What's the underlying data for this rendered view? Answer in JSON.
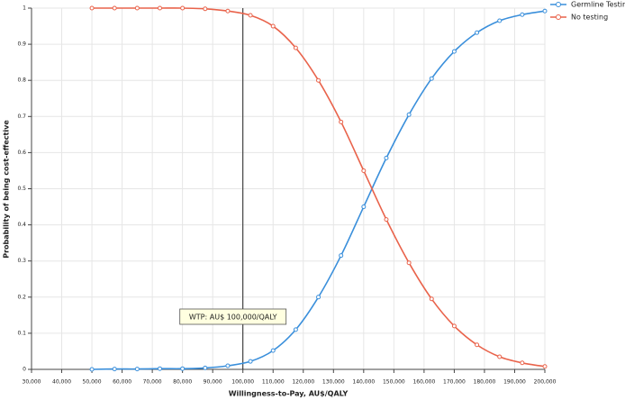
{
  "chart_data": {
    "type": "line",
    "x_label": "Willingness-to-Pay, AU$/QALY",
    "y_label": "Probability of being cost-effective",
    "x": [
      50000,
      57500,
      65000,
      72500,
      80000,
      87500,
      95000,
      102500,
      110000,
      117500,
      125000,
      132500,
      140000,
      147500,
      155000,
      162500,
      170000,
      177500,
      185000,
      192500,
      200000
    ],
    "series": [
      {
        "name": "Germline Testing",
        "color": "#3a8fdb",
        "values": [
          0.0,
          0.001,
          0.001,
          0.002,
          0.002,
          0.004,
          0.01,
          0.022,
          0.052,
          0.11,
          0.2,
          0.315,
          0.45,
          0.585,
          0.705,
          0.805,
          0.88,
          0.932,
          0.965,
          0.982,
          0.992
        ]
      },
      {
        "name": "No testing",
        "color": "#e9634b",
        "values": [
          1,
          1,
          1,
          1,
          1,
          0.998,
          0.992,
          0.98,
          0.95,
          0.89,
          0.8,
          0.685,
          0.55,
          0.415,
          0.295,
          0.195,
          0.12,
          0.068,
          0.035,
          0.018,
          0.008
        ]
      }
    ],
    "xlim": [
      30000,
      200000
    ],
    "xticks": [
      {
        "value": 30000,
        "label": "30,000"
      },
      {
        "value": 40000,
        "label": "40,000"
      },
      {
        "value": 50000,
        "label": "50,000"
      },
      {
        "value": 60000,
        "label": "60,000"
      },
      {
        "value": 70000,
        "label": "70,000"
      },
      {
        "value": 80000,
        "label": "80,000"
      },
      {
        "value": 90000,
        "label": "90,000"
      },
      {
        "value": 100000,
        "label": "100,000"
      },
      {
        "value": 110000,
        "label": "110,000"
      },
      {
        "value": 120000,
        "label": "120,000"
      },
      {
        "value": 130000,
        "label": "130,000"
      },
      {
        "value": 140000,
        "label": "140,000"
      },
      {
        "value": 150000,
        "label": "150,000"
      },
      {
        "value": 160000,
        "label": "160,000"
      },
      {
        "value": 170000,
        "label": "170,000"
      },
      {
        "value": 180000,
        "label": "180,000"
      },
      {
        "value": 190000,
        "label": "190,000"
      },
      {
        "value": 200000,
        "label": "200,000"
      }
    ],
    "ylim": [
      0,
      1
    ],
    "yticks": [
      0,
      0.1,
      0.2,
      0.3,
      0.4,
      0.5,
      0.6,
      0.7,
      0.8,
      0.9,
      1
    ],
    "grid": true,
    "legend_position": "top-right",
    "reference_line": {
      "x": 100000,
      "label": "WTP: AU$ 100,000/QALY"
    }
  }
}
